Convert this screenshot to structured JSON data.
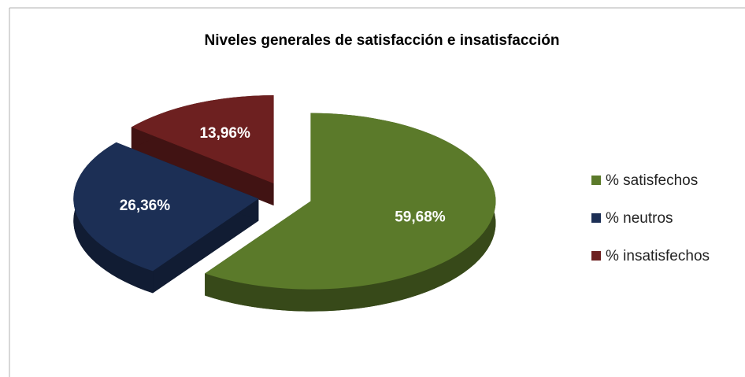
{
  "chart_data": {
    "type": "pie",
    "title": "Niveles generales de satisfacción e insatisfacción",
    "categories": [
      "% satisfechos",
      "% neutros",
      "% insatisfechos"
    ],
    "values": [
      59.68,
      26.36,
      13.96
    ],
    "value_labels": [
      "59,68%",
      "26,36%",
      "13,96%"
    ],
    "colors": [
      "#5b7a2a",
      "#1c2f55",
      "#6d2020"
    ],
    "legend": "right"
  }
}
